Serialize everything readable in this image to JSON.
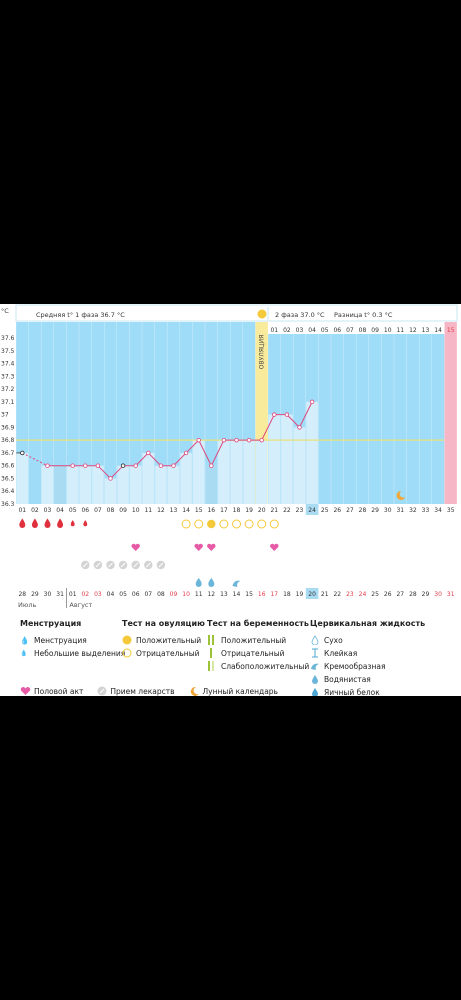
{
  "header": {
    "unit": "°C",
    "phase1": "Средняя t° 1 фаза 36.7 °C",
    "phase2": "2 фаза 37.0 °C",
    "diff": "Разница t° 0.3 °C",
    "ovulation": "ОВУЛЯЦИЯ"
  },
  "chart_data": {
    "type": "line",
    "cycle_days": [
      "01",
      "02",
      "03",
      "04",
      "05",
      "06",
      "07",
      "08",
      "09",
      "10",
      "11",
      "12",
      "13",
      "14",
      "15",
      "16",
      "17",
      "18",
      "19",
      "20",
      "21",
      "22",
      "23",
      "24",
      "25",
      "26",
      "27",
      "28",
      "29",
      "30",
      "31",
      "32",
      "33",
      "34",
      "35"
    ],
    "temperatures": [
      36.7,
      null,
      36.6,
      null,
      36.6,
      36.6,
      36.6,
      36.5,
      36.6,
      36.6,
      36.7,
      36.6,
      36.6,
      36.7,
      36.8,
      36.6,
      36.8,
      36.8,
      36.8,
      36.8,
      37.0,
      37.0,
      36.9,
      37.1,
      null,
      null,
      null,
      null,
      null,
      null,
      null,
      null,
      null,
      null,
      null
    ],
    "y_ticks": [
      "37.6",
      "37.5",
      "37.4",
      "37.3",
      "37.2",
      "37.1",
      "37",
      "36.9",
      "36.8",
      "36.7",
      "36.6",
      "36.5",
      "36.4",
      "36.3"
    ],
    "ylim": [
      36.3,
      37.6
    ],
    "coverline": 36.8,
    "ovulation_day": "20",
    "current_day": "24",
    "last_day": "35",
    "after_ovulation_days": [
      "01",
      "02",
      "03",
      "04",
      "05",
      "06",
      "07",
      "08",
      "09",
      "10",
      "11",
      "12",
      "13",
      "14",
      "15"
    ],
    "menstruation": [
      "big",
      "big",
      "big",
      "big",
      "small",
      "small",
      "",
      "",
      "",
      "",
      "",
      "",
      "",
      "",
      "",
      "",
      "",
      "",
      "",
      "",
      "",
      "",
      "",
      "",
      "",
      "",
      "",
      "",
      "",
      "",
      "",
      "",
      "",
      "",
      ""
    ],
    "ovulation_test": [
      "",
      "",
      "",
      "",
      "",
      "",
      "",
      "",
      "",
      "",
      "",
      "",
      "",
      "neg",
      "neg",
      "pos",
      "neg",
      "neg",
      "neg",
      "neg",
      "neg",
      "",
      "",
      "",
      "",
      "",
      "",
      "",
      "",
      "",
      "",
      "",
      "",
      "",
      ""
    ],
    "intercourse": [
      "",
      "",
      "",
      "",
      "",
      "",
      "",
      "",
      "",
      "y",
      "",
      "",
      "",
      "",
      "y",
      "y",
      "",
      "",
      "",
      "",
      "y",
      "",
      "",
      "",
      "",
      "",
      "",
      "",
      "",
      "",
      "",
      "",
      "",
      "",
      ""
    ],
    "pills": [
      "",
      "",
      "",
      "",
      "",
      "y",
      "y",
      "y",
      "y",
      "y",
      "y",
      "y",
      "",
      "",
      "",
      "",
      "",
      "",
      "",
      "",
      "",
      "",
      "",
      "",
      "",
      "",
      "",
      "",
      "",
      "",
      "",
      "",
      "",
      "",
      ""
    ],
    "cervical": [
      "",
      "",
      "",
      "",
      "",
      "",
      "",
      "",
      "",
      "",
      "",
      "",
      "",
      "",
      "water",
      "water",
      "",
      "cream",
      "",
      "",
      "",
      "",
      "",
      "",
      "",
      "",
      "",
      "",
      "",
      "",
      "",
      "",
      "",
      "",
      ""
    ],
    "moon_day": "31",
    "dates": [
      "28",
      "29",
      "30",
      "31",
      "01",
      "02",
      "03",
      "04",
      "05",
      "06",
      "07",
      "08",
      "09",
      "10",
      "11",
      "12",
      "13",
      "14",
      "15",
      "16",
      "17",
      "18",
      "19",
      "20",
      "21",
      "22",
      "23",
      "24",
      "25",
      "26",
      "27",
      "28",
      "29",
      "30",
      "31"
    ],
    "red_dates_idx": [
      5,
      6,
      12,
      13,
      19,
      20,
      26,
      27,
      33,
      34
    ],
    "current_date": "20",
    "month_july": "Июль",
    "month_august": "Август"
  },
  "legend": {
    "menstruation": {
      "title": "Менструация",
      "items": [
        "Менструация",
        "Небольшие выделения"
      ]
    },
    "ovulation_test": {
      "title": "Тест на овуляцию",
      "items": [
        "Положительный",
        "Отрицательный"
      ]
    },
    "pregnancy_test": {
      "title": "Тест на беременность",
      "items": [
        "Положительный",
        "Отрицательный",
        "Слабоположительный"
      ]
    },
    "cervical": {
      "title": "Цервикальная жидкость",
      "items": [
        "Сухо",
        "Клейкая",
        "Кремообразная",
        "Водянистая",
        "Яичный белок"
      ]
    },
    "bottom": {
      "intercourse": "Половой акт",
      "pills": "Прием лекарств",
      "moon": "Лунный календарь"
    }
  },
  "colors": {
    "plot_bg": "#9fdcf7",
    "bar": "#d4eefb",
    "bar_dark": "#a9dbf3",
    "line": "#e0467c",
    "coverline": "#e8e27a",
    "ovulation_band": "#f8ec9c",
    "current_day": "#a9dbf3",
    "last_day": "#f7b6c6",
    "red_text": "#e23b4b",
    "accent_yellow": "#f4c93a"
  }
}
